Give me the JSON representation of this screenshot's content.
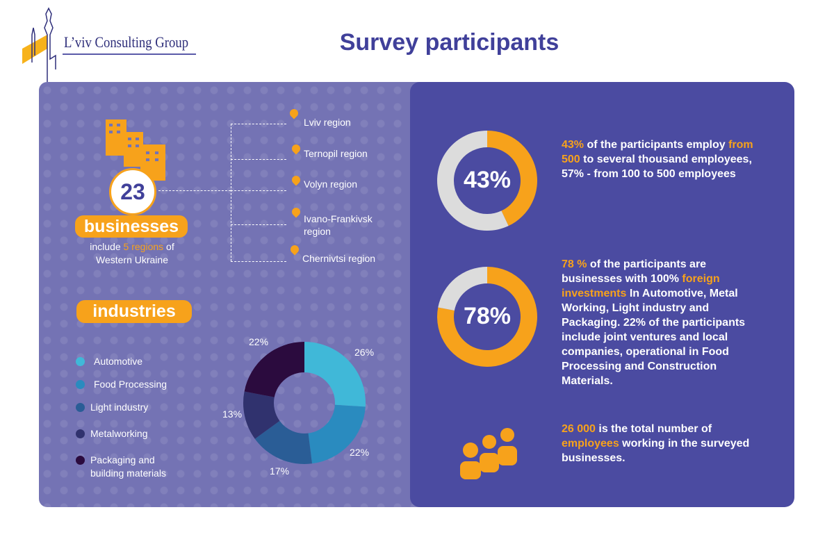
{
  "logo": {
    "text": "L’viv Consulting Group"
  },
  "title": "Survey participants",
  "businesses": {
    "count": "23",
    "label": "businesses",
    "include_pre": "include ",
    "include_highlight": "5 regions",
    "include_post": " of",
    "include_line2": "Western Ukraine"
  },
  "regions": [
    "Lviv region",
    "Ternopil region",
    "Volyn region",
    "Ivano-Frankivsk region",
    "Chernivtsi  region"
  ],
  "industries": {
    "label": "industries"
  },
  "colors": {
    "accent": "#f7a21b",
    "title": "#40409a",
    "left_panel": "#7473b4",
    "right_panel": "#4b4ba1",
    "ring_grey": "#dcdcdc"
  },
  "chart_data": [
    {
      "type": "pie",
      "donut": true,
      "categories": [
        "Automotive",
        "Food Processing",
        "Light industry",
        "Metalworking",
        "Packaging and building materials"
      ],
      "values": [
        26,
        22,
        17,
        13,
        22
      ],
      "labels": [
        "26%",
        "22%",
        "17%",
        "13%",
        "22%"
      ],
      "colors": [
        "#40b8d8",
        "#2a8bbf",
        "#2a5d96",
        "#30326e",
        "#2b0b3e"
      ],
      "legend": "left"
    },
    {
      "type": "pie",
      "donut": true,
      "values": [
        43,
        57
      ],
      "center_label": "43%",
      "colors": [
        "#f7a21b",
        "#dcdcdc"
      ]
    },
    {
      "type": "pie",
      "donut": true,
      "values": [
        78,
        22
      ],
      "center_label": "78%",
      "colors": [
        "#f7a21b",
        "#dcdcdc"
      ]
    }
  ],
  "stats": {
    "s1": {
      "a": "43%",
      "b": "  of the participants employ ",
      "c": "from 500",
      "d": " to several thousand employees, 57% - from 100 to 500 employees"
    },
    "s2": {
      "a": "78 %",
      "b": " of the participants are businesses with 100% ",
      "c": "foreign investments",
      "d": " In Automotive, Metal Working, Light industry and Packaging. 22% of the participants include joint ventures and local companies, operational in Food Processing and Construction Materials."
    },
    "s3": {
      "a": "26 000",
      "b": "  is the total number of ",
      "c": "employees",
      "d": " working in the surveyed businesses."
    }
  }
}
